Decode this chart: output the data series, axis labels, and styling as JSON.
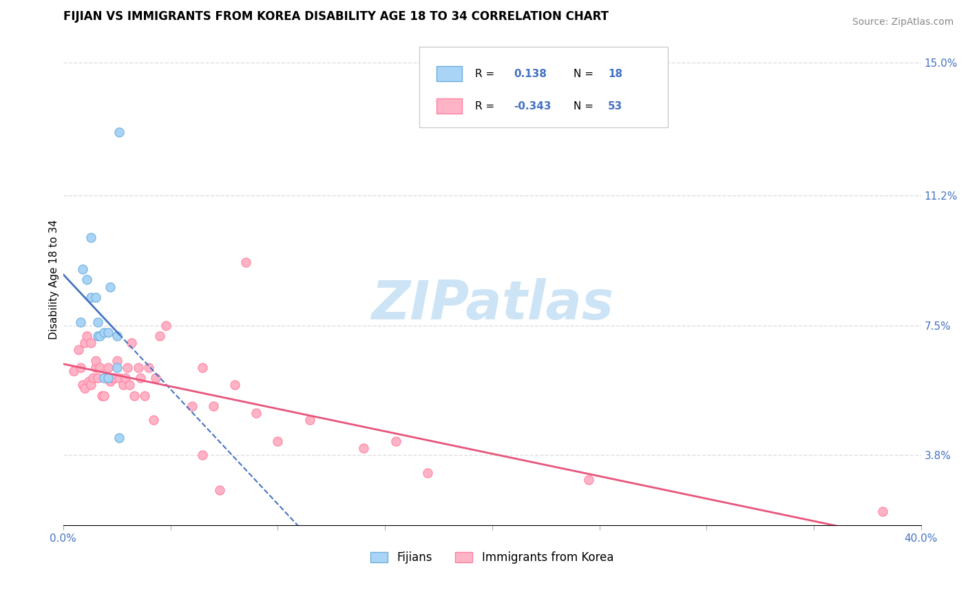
{
  "title": "FIJIAN VS IMMIGRANTS FROM KOREA DISABILITY AGE 18 TO 34 CORRELATION CHART",
  "source": "Source: ZipAtlas.com",
  "ylabel": "Disability Age 18 to 34",
  "xlim": [
    0.0,
    0.4
  ],
  "ylim": [
    0.018,
    0.158
  ],
  "yticks": [
    0.038,
    0.075,
    0.112,
    0.15
  ],
  "ytick_labels": [
    "3.8%",
    "7.5%",
    "11.2%",
    "15.0%"
  ],
  "xticks": [
    0.0,
    0.05,
    0.1,
    0.15,
    0.2,
    0.25,
    0.3,
    0.35,
    0.4
  ],
  "xtick_labels": [
    "0.0%",
    "",
    "",
    "",
    "",
    "",
    "",
    "",
    "40.0%"
  ],
  "fijian_R": 0.138,
  "fijian_N": 18,
  "korea_R": -0.343,
  "korea_N": 53,
  "fijian_color": "#aad4f5",
  "fijian_edge": "#6aaee0",
  "korea_color": "#ffb3c6",
  "korea_edge": "#ff80a0",
  "fijian_line_color": "#4472c4",
  "korea_line_color": "#e8547a",
  "watermark_color": "#cce4f5",
  "grid_color": "#dddddd",
  "fijian_x": [
    0.008,
    0.009,
    0.011,
    0.013,
    0.013,
    0.015,
    0.016,
    0.016,
    0.017,
    0.019,
    0.019,
    0.021,
    0.021,
    0.022,
    0.025,
    0.025,
    0.026,
    0.026
  ],
  "fijian_y": [
    0.076,
    0.091,
    0.088,
    0.083,
    0.1,
    0.083,
    0.072,
    0.076,
    0.072,
    0.073,
    0.06,
    0.073,
    0.06,
    0.086,
    0.063,
    0.072,
    0.043,
    0.13
  ],
  "korea_x": [
    0.005,
    0.007,
    0.008,
    0.009,
    0.01,
    0.01,
    0.011,
    0.012,
    0.013,
    0.013,
    0.014,
    0.015,
    0.015,
    0.016,
    0.017,
    0.018,
    0.019,
    0.02,
    0.021,
    0.022,
    0.023,
    0.024,
    0.025,
    0.026,
    0.028,
    0.029,
    0.03,
    0.031,
    0.032,
    0.033,
    0.035,
    0.036,
    0.038,
    0.04,
    0.042,
    0.043,
    0.045,
    0.048,
    0.06,
    0.065,
    0.065,
    0.07,
    0.073,
    0.08,
    0.085,
    0.09,
    0.1,
    0.115,
    0.14,
    0.155,
    0.17,
    0.245,
    0.382
  ],
  "korea_y": [
    0.062,
    0.068,
    0.063,
    0.058,
    0.07,
    0.057,
    0.072,
    0.059,
    0.07,
    0.058,
    0.06,
    0.063,
    0.065,
    0.06,
    0.063,
    0.055,
    0.055,
    0.06,
    0.063,
    0.059,
    0.06,
    0.06,
    0.065,
    0.06,
    0.058,
    0.06,
    0.063,
    0.058,
    0.07,
    0.055,
    0.063,
    0.06,
    0.055,
    0.063,
    0.048,
    0.06,
    0.072,
    0.075,
    0.052,
    0.038,
    0.063,
    0.052,
    0.028,
    0.058,
    0.093,
    0.05,
    0.042,
    0.048,
    0.04,
    0.042,
    0.033,
    0.031,
    0.022
  ]
}
